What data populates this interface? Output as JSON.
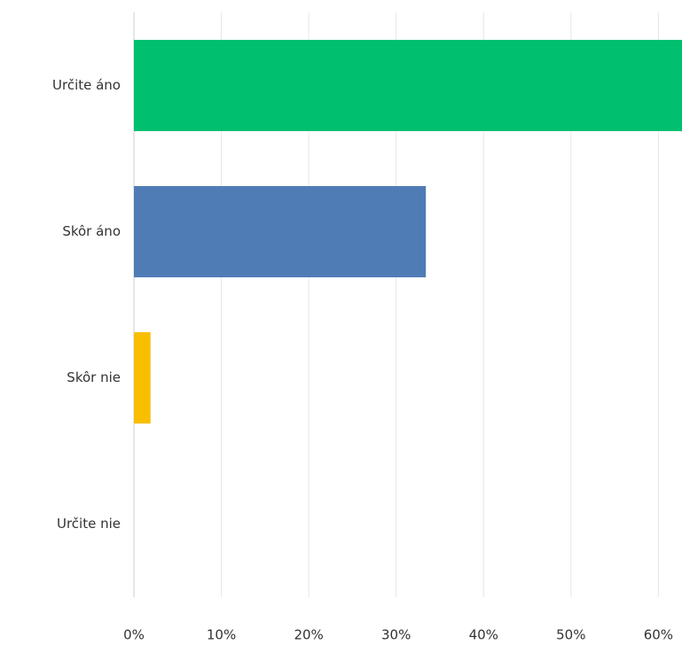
{
  "chart_data": {
    "type": "bar",
    "orientation": "horizontal",
    "categories": [
      "Určite áno",
      "Skôr áno",
      "Skôr nie",
      "Určite nie"
    ],
    "values": [
      64.7,
      33.4,
      1.9,
      0
    ],
    "colors": [
      "#00bf6f",
      "#507cb6",
      "#f9be00",
      "#6bc8cd"
    ],
    "xlim": [
      0,
      62.7
    ],
    "xticks": [
      {
        "value": 0,
        "label": "0%"
      },
      {
        "value": 10,
        "label": "10%"
      },
      {
        "value": 20,
        "label": "20%"
      },
      {
        "value": 30,
        "label": "30%"
      },
      {
        "value": 40,
        "label": "40%"
      },
      {
        "value": 50,
        "label": "50%"
      },
      {
        "value": 60,
        "label": "60%"
      }
    ],
    "grid": true
  }
}
